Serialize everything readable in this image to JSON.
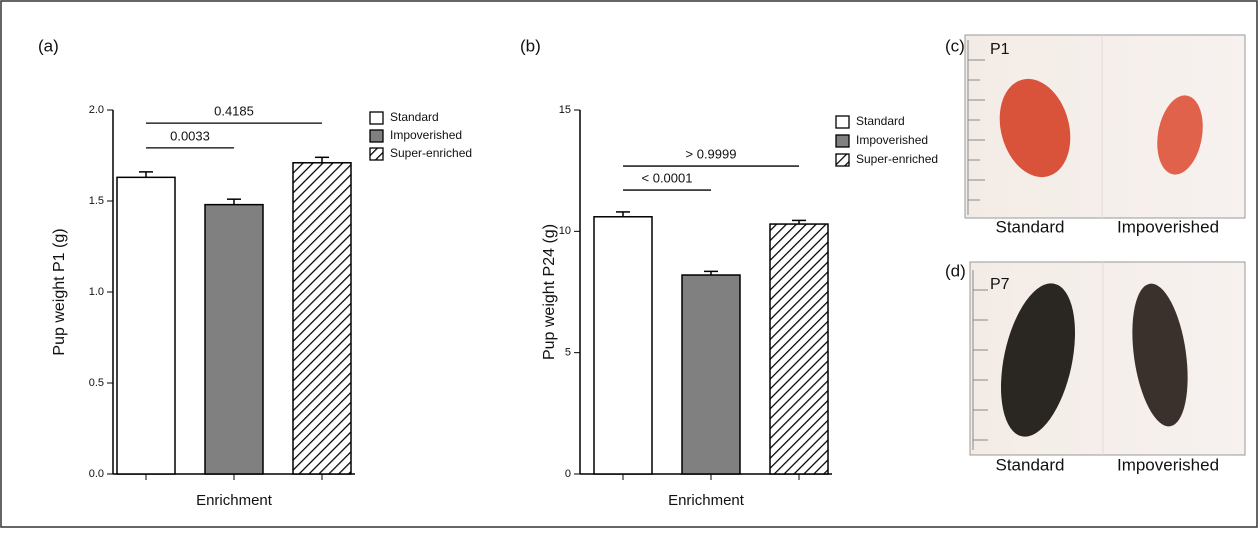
{
  "chart_data": [
    {
      "type": "bar",
      "panel": "(a)",
      "ylabel": "Pup weight P1 (g)",
      "xlabel": "Enrichment",
      "categories": [
        null
      ],
      "series": [
        {
          "name": "Standard",
          "color": "#ffffff",
          "values": [
            1.63
          ],
          "errors": [
            0.03
          ]
        },
        {
          "name": "Impoverished",
          "color": "#808080",
          "values": [
            1.48
          ],
          "errors": [
            0.03
          ]
        },
        {
          "name": "Super-enriched",
          "color": "#ffffff",
          "hatch": true,
          "values": [
            1.71
          ],
          "errors": [
            0.03
          ]
        }
      ],
      "ylim": [
        0,
        2
      ],
      "yticks": [
        {
          "value": 0,
          "label": "0.0"
        },
        0.5,
        {
          "value": 1,
          "label": "1.0"
        },
        1.5,
        {
          "value": 2,
          "label": "2.0"
        }
      ],
      "annotations": [
        "0.0033",
        "0.4185"
      ]
    },
    {
      "type": "bar",
      "panel": "(b)",
      "ylabel": "Pup weight P24 (g)",
      "xlabel": "Enrichment",
      "categories": [
        null
      ],
      "series": [
        {
          "name": "Standard",
          "color": "#ffffff",
          "values": [
            10.6
          ],
          "errors": [
            0.2
          ]
        },
        {
          "name": "Impoverished",
          "color": "#808080",
          "values": [
            8.2
          ],
          "errors": [
            0.15
          ]
        },
        {
          "name": "Super-enriched",
          "color": "#ffffff",
          "hatch": true,
          "values": [
            10.3
          ],
          "errors": [
            0.15
          ]
        }
      ],
      "ylim": [
        0,
        15
      ],
      "yticks": [
        0,
        5,
        10,
        15
      ],
      "annotations": [
        "< 0.0001",
        "> 0.9999"
      ]
    }
  ],
  "photos": [
    {
      "panel": "(c)",
      "age": "P1",
      "labels": [
        "Standard",
        "Impoverished"
      ]
    },
    {
      "panel": "(d)",
      "age": "P7",
      "labels": [
        "Standard",
        "Impoverished"
      ]
    }
  ]
}
